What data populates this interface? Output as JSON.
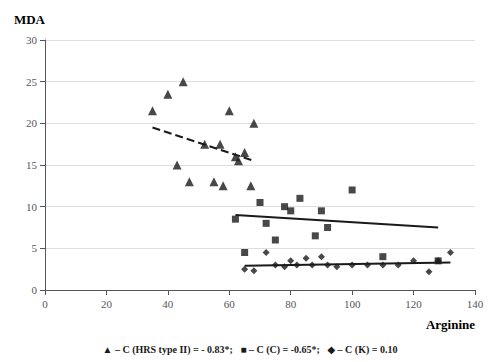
{
  "chart_data": {
    "type": "scatter",
    "xlabel": "Arginine",
    "ylabel": "MDA",
    "annotation": "▲ – C (HRS type II) = - 0.83*;   ■ – C (C) = -0.65*;   ◆ – C (K) = 0.10",
    "xlim": [
      0,
      140
    ],
    "ylim": [
      0,
      30
    ],
    "xticks": [
      0,
      20,
      40,
      60,
      80,
      100,
      120,
      140
    ],
    "yticks": [
      0,
      5,
      10,
      15,
      20,
      25,
      30
    ],
    "grid": "y",
    "series": [
      {
        "type": "scatter",
        "marker": "triangle",
        "color": "#1a1a1a",
        "x": [
          35,
          40,
          43,
          45,
          47,
          52,
          55,
          57,
          58,
          60,
          62,
          63,
          65,
          67,
          68
        ],
        "values": [
          21.5,
          23.5,
          15,
          25,
          13,
          17.5,
          13,
          17.5,
          12.5,
          21.5,
          16,
          15.5,
          16.5,
          12.5,
          20
        ]
      },
      {
        "type": "scatter",
        "marker": "square",
        "color": "#1a1a1a",
        "x": [
          62,
          65,
          70,
          72,
          75,
          78,
          80,
          83,
          88,
          90,
          92,
          100,
          110,
          128
        ],
        "values": [
          8.5,
          4.5,
          10.5,
          8,
          6,
          10,
          9.5,
          11,
          6.5,
          9.5,
          7.5,
          12,
          4,
          3.5
        ]
      },
      {
        "type": "scatter",
        "marker": "diamond",
        "color": "#1a1a1a",
        "x": [
          65,
          68,
          72,
          75,
          78,
          80,
          82,
          85,
          87,
          90,
          92,
          95,
          100,
          105,
          110,
          115,
          120,
          125,
          128,
          132
        ],
        "values": [
          2.5,
          2.3,
          4.5,
          3,
          2.8,
          3.5,
          3,
          3.8,
          3,
          4,
          3,
          2.8,
          3,
          3,
          3,
          3,
          3.5,
          2.2,
          3.5,
          4.5
        ]
      },
      {
        "type": "line",
        "line_style": "dashed",
        "color": "#1a1a1a",
        "x": [
          35,
          68
        ],
        "values": [
          19.5,
          15.5
        ]
      },
      {
        "type": "line",
        "line_style": "solid",
        "color": "#1a1a1a",
        "x": [
          62,
          128
        ],
        "values": [
          9.0,
          7.5
        ]
      },
      {
        "type": "line",
        "line_style": "solid",
        "color": "#1a1a1a",
        "x": [
          65,
          132
        ],
        "values": [
          2.9,
          3.3
        ]
      }
    ]
  }
}
